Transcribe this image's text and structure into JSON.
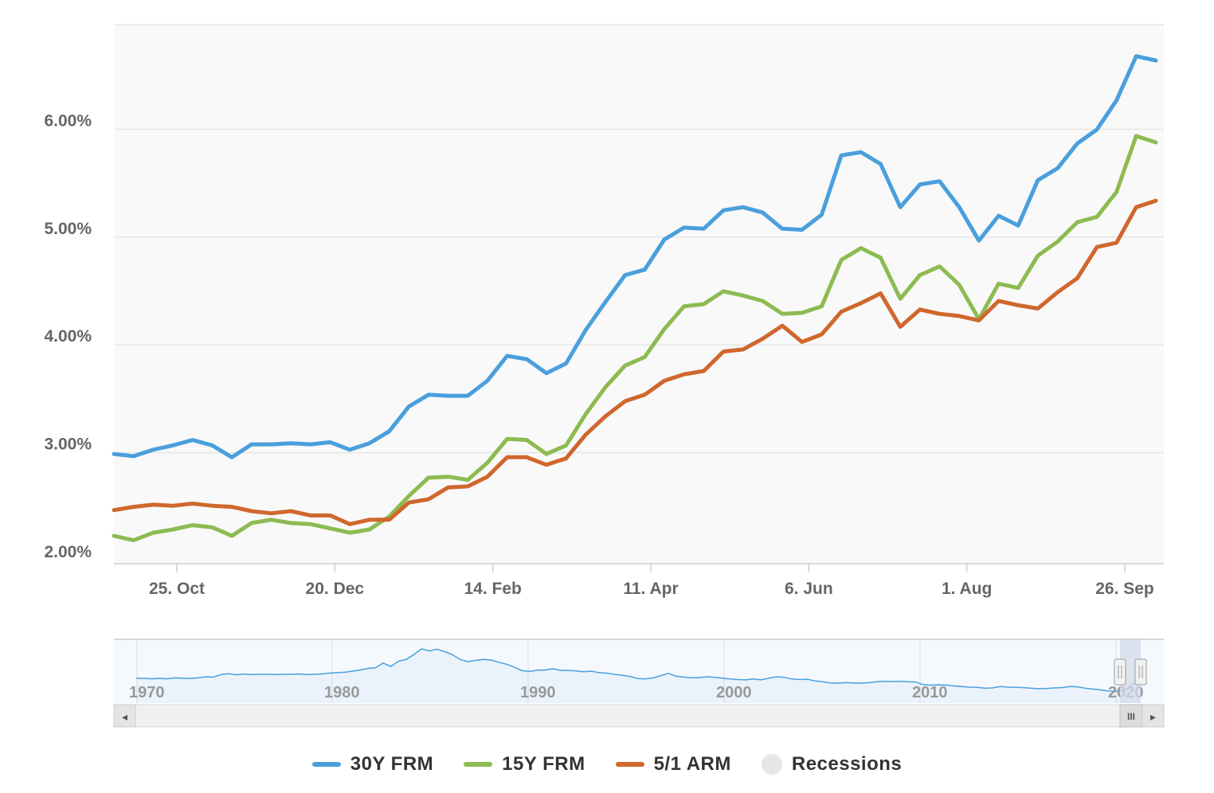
{
  "chart_data": {
    "type": "line",
    "x_labels": [
      "25. Oct",
      "20. Dec",
      "14. Feb",
      "11. Apr",
      "6. Jun",
      "1. Aug",
      "26. Sep"
    ],
    "y_ticks": [
      "2.00%",
      "3.00%",
      "4.00%",
      "5.00%",
      "6.00%"
    ],
    "ylim": [
      2.0,
      7.0
    ],
    "grid": true,
    "legend_position": "bottom",
    "series": [
      {
        "name": "30Y FRM",
        "color": "#4a9fdc",
        "values": [
          3.01,
          2.99,
          3.05,
          3.09,
          3.14,
          3.09,
          2.98,
          3.1,
          3.1,
          3.11,
          3.1,
          3.12,
          3.05,
          3.11,
          3.22,
          3.45,
          3.56,
          3.55,
          3.55,
          3.69,
          3.92,
          3.89,
          3.76,
          3.85,
          4.16,
          4.42,
          4.67,
          4.72,
          5.0,
          5.11,
          5.1,
          5.27,
          5.3,
          5.25,
          5.1,
          5.09,
          5.23,
          5.78,
          5.81,
          5.7,
          5.3,
          5.51,
          5.54,
          5.3,
          4.99,
          5.22,
          5.13,
          5.55,
          5.66,
          5.89,
          6.02,
          6.29,
          6.7,
          6.66
        ]
      },
      {
        "name": "15Y FRM",
        "color": "#8dbb52",
        "values": [
          2.25,
          2.21,
          2.28,
          2.31,
          2.35,
          2.33,
          2.25,
          2.37,
          2.4,
          2.37,
          2.36,
          2.32,
          2.28,
          2.31,
          2.43,
          2.62,
          2.79,
          2.8,
          2.77,
          2.93,
          3.15,
          3.14,
          3.01,
          3.09,
          3.38,
          3.63,
          3.83,
          3.91,
          4.17,
          4.38,
          4.4,
          4.52,
          4.48,
          4.43,
          4.31,
          4.32,
          4.38,
          4.81,
          4.92,
          4.83,
          4.45,
          4.67,
          4.75,
          4.58,
          4.26,
          4.59,
          4.55,
          4.85,
          4.98,
          5.16,
          5.21,
          5.44,
          5.96,
          5.9
        ]
      },
      {
        "name": "5/1 ARM",
        "color": "#d0672c",
        "values": [
          2.49,
          2.52,
          2.54,
          2.53,
          2.55,
          2.53,
          2.52,
          2.48,
          2.46,
          2.48,
          2.44,
          2.44,
          2.36,
          2.4,
          2.4,
          2.56,
          2.59,
          2.7,
          2.71,
          2.8,
          2.98,
          2.98,
          2.91,
          2.97,
          3.19,
          3.36,
          3.5,
          3.56,
          3.69,
          3.75,
          3.78,
          3.96,
          3.98,
          4.08,
          4.2,
          4.05,
          4.12,
          4.33,
          4.41,
          4.5,
          4.19,
          4.35,
          4.31,
          4.29,
          4.25,
          4.43,
          4.39,
          4.36,
          4.51,
          4.64,
          4.93,
          4.97,
          5.3,
          5.36
        ]
      }
    ]
  },
  "navigator": {
    "x_labels": [
      "1970",
      "1980",
      "1990",
      "2000",
      "2010",
      "2020"
    ],
    "series_color": "#4a9fdc",
    "values": [
      7.5,
      7.4,
      7.3,
      7.4,
      7.3,
      7.6,
      7.5,
      7.4,
      7.6,
      8.0,
      7.9,
      8.8,
      9.1,
      8.7,
      9.0,
      8.8,
      8.9,
      8.9,
      8.8,
      8.9,
      8.9,
      9.0,
      8.8,
      8.9,
      9.0,
      9.3,
      9.5,
      9.6,
      10.0,
      10.4,
      11.0,
      11.2,
      12.9,
      11.7,
      13.6,
      14.2,
      16.0,
      18.0,
      17.3,
      17.9,
      17.0,
      15.9,
      14.2,
      13.4,
      13.9,
      14.2,
      14.0,
      13.2,
      12.5,
      11.5,
      10.2,
      9.9,
      10.4,
      10.4,
      10.9,
      10.3,
      10.3,
      10.1,
      9.8,
      10.0,
      9.5,
      9.3,
      8.9,
      8.5,
      8.1,
      7.4,
      7.2,
      7.6,
      8.4,
      9.2,
      8.2,
      7.9,
      7.6,
      7.7,
      8.0,
      7.8,
      7.5,
      7.2,
      7.0,
      6.9,
      7.2,
      6.9,
      7.5,
      8.0,
      7.8,
      7.2,
      7.0,
      7.1,
      6.5,
      6.2,
      5.8,
      5.7,
      5.9,
      5.8,
      5.7,
      5.9,
      6.2,
      6.4,
      6.3,
      6.4,
      6.2,
      6.1,
      5.2,
      5.0,
      5.1,
      5.0,
      4.7,
      4.5,
      4.3,
      4.2,
      3.9,
      4.0,
      4.5,
      4.3,
      4.2,
      4.1,
      3.9,
      3.7,
      3.8,
      4.0,
      4.1,
      4.5,
      4.4,
      3.9,
      3.6,
      3.3,
      2.9,
      2.8,
      3.0,
      5.0,
      6.7
    ]
  },
  "legend": {
    "items": [
      {
        "label": "30Y FRM",
        "color": "#4a9fdc"
      },
      {
        "label": "15Y FRM",
        "color": "#8dbb52"
      },
      {
        "label": "5/1 ARM",
        "color": "#d0672c"
      },
      {
        "label": "Recessions",
        "color": "#e6e6e6"
      }
    ]
  },
  "scrollbar": {
    "left_arrow": "◂",
    "right_arrow": "▸",
    "thumb_grip": "III"
  }
}
